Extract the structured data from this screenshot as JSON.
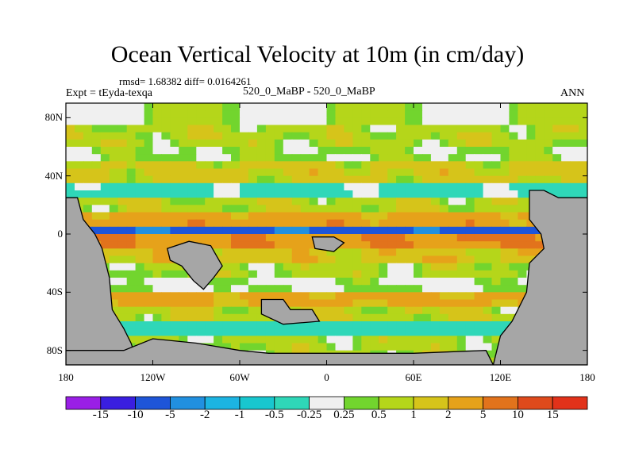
{
  "title": "Ocean Vertical Velocity at 10m (in cm/day)",
  "stats": "rmsd= 1.68382 diff= 0.0164261",
  "experiment": "Expt = tEyda-texqa",
  "comparison": "520_0_MaBP - 520_0_MaBP",
  "season": "ANN",
  "chart_data": {
    "type": "heatmap",
    "title": "Ocean Vertical Velocity at 10m (in cm/day)",
    "x_ticks": [
      "180",
      "120W",
      "60W",
      "0",
      "60E",
      "120E",
      "180"
    ],
    "y_ticks": [
      "80N",
      "40N",
      "0",
      "40S",
      "80S"
    ],
    "xlim": [
      -180,
      180
    ],
    "ylim": [
      -90,
      90
    ],
    "colorbar_labels": [
      "-15",
      "-10",
      "-5",
      "-2",
      "-1",
      "-0.5",
      "-0.25",
      "0.25",
      "0.5",
      "1",
      "2",
      "5",
      "10",
      "15"
    ],
    "colors": [
      "#9a1fe6",
      "#3a1ee0",
      "#1e55d8",
      "#2190e0",
      "#1cb4e2",
      "#18c7cf",
      "#2fd7b8",
      "#f0f0f0",
      "#72d52e",
      "#b5d61a",
      "#d6c41a",
      "#e6a21a",
      "#e2731c",
      "#df4a1c",
      "#e2321a"
    ],
    "land_color": "#a6a6a6",
    "bands": [
      {
        "lat": 70,
        "value": 0.7
      },
      {
        "lat": 55,
        "value": 0.35
      },
      {
        "lat": 42,
        "value": 1.2
      },
      {
        "lat": 30,
        "value": -0.3
      },
      {
        "lat": 18,
        "value": 0.8
      },
      {
        "lat": 8,
        "value": 3.5
      },
      {
        "lat": 2,
        "value": -6
      },
      {
        "lat": -5,
        "value": 4.5
      },
      {
        "lat": -15,
        "value": 1.5
      },
      {
        "lat": -25,
        "value": 0.6
      },
      {
        "lat": -35,
        "value": 0.2
      },
      {
        "lat": -45,
        "value": 2.5
      },
      {
        "lat": -55,
        "value": 0.9
      },
      {
        "lat": -65,
        "value": -0.4
      },
      {
        "lat": -75,
        "value": 0.6
      }
    ]
  }
}
